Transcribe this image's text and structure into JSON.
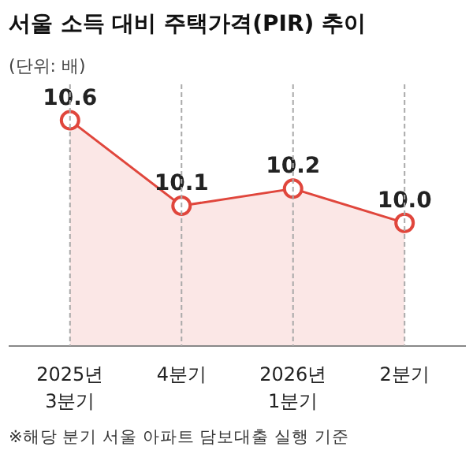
{
  "chart_data": {
    "type": "area",
    "title": "서울 소득 대비 주택가격(PIR) 추이",
    "subtitle": "(단위: 배)",
    "categories": [
      "2025년 3분기",
      "4분기",
      "2026년 1분기",
      "2분기"
    ],
    "series": [
      {
        "color": "#e0463c",
        "values": [
          10.6,
          10.1,
          10.2,
          10.0
        ],
        "value_labels": [
          "10.6",
          "10.1",
          "10.2",
          "10.0"
        ]
      }
    ],
    "marker": "circle",
    "ref_lines": [
      {
        "axis": "x",
        "value": "2025년 3분기",
        "color": "#aaaaaa",
        "line_style": "dashed"
      },
      {
        "axis": "x",
        "value": "4분기",
        "color": "#aaaaaa",
        "line_style": "dashed"
      },
      {
        "axis": "x",
        "value": "2026년 1분기",
        "color": "#aaaaaa",
        "line_style": "dashed"
      },
      {
        "axis": "x",
        "value": "2분기",
        "color": "#aaaaaa",
        "line_style": "dashed"
      }
    ],
    "annotations": [
      "※해당 분기 서울 아파트 담보대출 실행 기준"
    ]
  }
}
